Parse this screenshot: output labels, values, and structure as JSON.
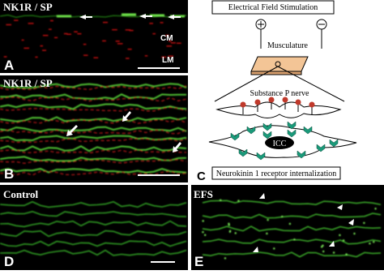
{
  "panels": {
    "a": {
      "title": "NK1R / SP",
      "letter": "A",
      "layer_top": "CM",
      "layer_bottom": "LM"
    },
    "b": {
      "title": "NK1R / SP",
      "letter": "B"
    },
    "c": {
      "letter": "C",
      "title": "Electrical Field Stimulation",
      "musculature": "Musculature",
      "nerve": "Substance P nerve",
      "cell": "ICC",
      "caption": "Neurokinin 1 receptor internalization"
    },
    "d": {
      "title": "Control",
      "letter": "D"
    },
    "e": {
      "title": "EFS",
      "letter": "E"
    }
  }
}
